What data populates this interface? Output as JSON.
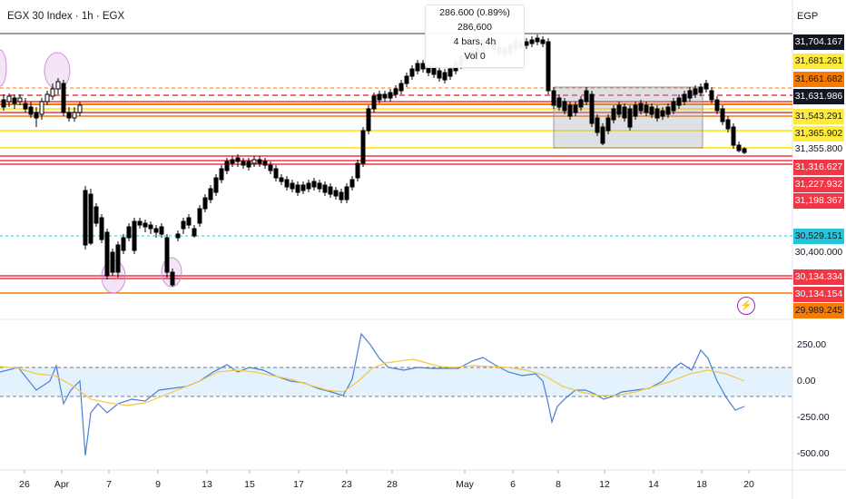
{
  "legend": {
    "title": "EGX 30 Index · 1h · EGX"
  },
  "measure_tooltip": {
    "line1": "286.600 (0.89%) 286,600",
    "line2": "4 bars, 4h",
    "line3": "Vol 0"
  },
  "currency": "EGP",
  "price_labels": [
    {
      "value": "31,704.167",
      "bg": "#131722",
      "fg": "#ffffff",
      "price": 31704.167
    },
    {
      "value": "31,681.261",
      "bg": "#ffeb3b",
      "fg": "#131722",
      "price": 31681.261
    },
    {
      "value": "31,661.682",
      "bg": "#f57c00",
      "fg": "#131722",
      "price": 31661.682
    },
    {
      "value": "31,631.986",
      "bg": "#131722",
      "fg": "#ffffff",
      "price": 31631.986
    },
    {
      "value": "31,543.291",
      "bg": "#ffeb3b",
      "fg": "#131722",
      "price": 31543.291
    },
    {
      "value": "31,365.902",
      "bg": "#ffeb3b",
      "fg": "#131722",
      "price": 31365.902
    },
    {
      "value": "31,355.800",
      "bg": "#ffffff",
      "fg": "#131722",
      "price": 31355.8
    },
    {
      "value": "31,316.627",
      "bg": "#f23645",
      "fg": "#ffffff",
      "price": 31316.627
    },
    {
      "value": "31,227.932",
      "bg": "#f23645",
      "fg": "#ffffff",
      "price": 31227.932
    },
    {
      "value": "31,198.367",
      "bg": "#f23645",
      "fg": "#ffffff",
      "price": 31198.367
    },
    {
      "value": "30,529.151",
      "bg": "#26c6da",
      "fg": "#131722",
      "price": 30529.151
    },
    {
      "value": "30,400.000",
      "bg": "transparent",
      "fg": "#131722",
      "price": 30400
    },
    {
      "value": "30,134.334",
      "bg": "#f23645",
      "fg": "#ffffff",
      "price": 30134.334
    },
    {
      "value": "30,134.154",
      "bg": "#f23645",
      "fg": "#ffffff",
      "price": 30134.154
    },
    {
      "value": "29,989.245",
      "bg": "#f57c00",
      "fg": "#131722",
      "price": 29989.245
    }
  ],
  "osc_axis": [
    "250.00",
    "0.00",
    "-250.00",
    "-500.00"
  ],
  "x_axis": [
    "26",
    "Apr",
    "7",
    "9",
    "13",
    "15",
    "17",
    "23",
    "28",
    "May",
    "6",
    "8",
    "12",
    "14",
    "18",
    "20"
  ],
  "colors": {
    "candle": "#000000",
    "red_line": "#f23645",
    "yellow_line": "#ffeb3b",
    "orange_line": "#f57c00",
    "blue": "#4a7fd4",
    "signal": "#f5c842",
    "band": "#e3f2fd",
    "zone": "#d1d4dc"
  }
}
